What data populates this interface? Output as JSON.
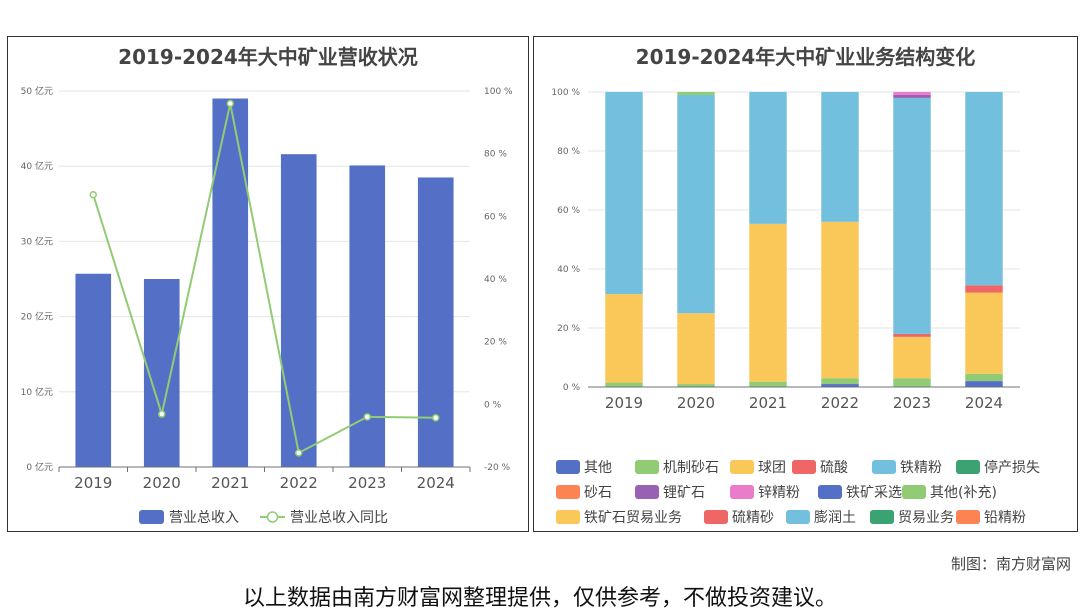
{
  "chart_data": [
    {
      "type": "bar+line",
      "title": "2019-2024年大中矿业营收状况",
      "categories": [
        "2019",
        "2020",
        "2021",
        "2022",
        "2023",
        "2024"
      ],
      "y_left": {
        "ticks": [
          "0 亿元",
          "10 亿元",
          "20 亿元",
          "30 亿元",
          "40 亿元",
          "50 亿元"
        ],
        "range": [
          0,
          50
        ]
      },
      "y_right": {
        "ticks": [
          "-20 %",
          "0 %",
          "20 %",
          "40 %",
          "60 %",
          "80 %",
          "100 %"
        ],
        "range": [
          -20,
          100
        ]
      },
      "series": [
        {
          "name": "营业总收入",
          "type": "bar",
          "axis": "left",
          "color": "#5470c6",
          "values": [
            25.7,
            25.0,
            49.0,
            41.6,
            40.1,
            38.5
          ]
        },
        {
          "name": "营业总收入同比",
          "type": "line",
          "axis": "right",
          "color": "#91cc75",
          "values": [
            66.9,
            -3.1,
            96.0,
            -15.5,
            -4.0,
            -4.3
          ]
        }
      ],
      "legend_position": "bottom",
      "grid": true
    },
    {
      "type": "stacked-bar",
      "title": "2019-2024年大中矿业业务结构变化",
      "categories": [
        "2019",
        "2020",
        "2021",
        "2022",
        "2023",
        "2024"
      ],
      "y_axis": {
        "ticks": [
          "0 %",
          "20 %",
          "40 %",
          "60 %",
          "80 %",
          "100 %"
        ],
        "range": [
          0,
          100
        ]
      },
      "series": [
        {
          "name": "其他",
          "color": "#5470c6",
          "values": [
            0,
            0,
            0,
            1,
            0,
            2
          ]
        },
        {
          "name": "机制砂石",
          "color": "#91cc75",
          "values": [
            1.5,
            1,
            1.8,
            2,
            3,
            2.5
          ]
        },
        {
          "name": "球团",
          "color": "#fac858",
          "values": [
            30,
            24,
            53.5,
            53,
            14,
            27.5
          ]
        },
        {
          "name": "硫酸",
          "color": "#ee6666",
          "values": [
            0,
            0,
            0,
            0,
            1,
            2.5
          ]
        },
        {
          "name": "铁精粉",
          "color": "#73c0de",
          "values": [
            68.5,
            74,
            44.7,
            44,
            80,
            65.5
          ]
        },
        {
          "name": "停产损失",
          "color": "#3ba272",
          "values": [
            0,
            0,
            0,
            0,
            0,
            0
          ]
        },
        {
          "name": "砂石",
          "color": "#fc8452",
          "values": [
            0,
            0,
            0,
            0,
            0,
            0
          ]
        },
        {
          "name": "锂矿石",
          "color": "#9a60b4",
          "values": [
            0,
            0,
            0,
            0,
            1,
            0
          ]
        },
        {
          "name": "锌精粉",
          "color": "#ea7ccc",
          "values": [
            0,
            0,
            0,
            0,
            1,
            0
          ]
        },
        {
          "name": "铁矿采选业",
          "color": "#5470c6",
          "values": [
            0,
            0,
            0,
            0,
            0,
            0
          ]
        },
        {
          "name": "其他(补充)",
          "color": "#91cc75",
          "values": [
            0,
            1,
            0,
            0,
            0,
            0
          ]
        },
        {
          "name": "铁矿石贸易业务",
          "color": "#fac858",
          "values": [
            0,
            0,
            0,
            0,
            0,
            0
          ]
        },
        {
          "name": "硫精砂",
          "color": "#ee6666",
          "values": [
            0,
            0,
            0,
            0,
            0,
            0
          ]
        },
        {
          "name": "膨润土",
          "color": "#73c0de",
          "values": [
            0,
            0,
            0,
            0,
            0,
            0
          ]
        },
        {
          "name": "贸易业务",
          "color": "#3ba272",
          "values": [
            0,
            0,
            0,
            0,
            0,
            0
          ]
        },
        {
          "name": "铅精粉",
          "color": "#fc8452",
          "values": [
            0,
            0,
            0,
            0,
            0,
            0
          ]
        }
      ],
      "legend_position": "bottom",
      "grid": true
    }
  ],
  "footer": {
    "credit": "制图：南方财富网",
    "disclaimer": "以上数据由南方财富网整理提供，仅供参考，不做投资建议。"
  }
}
